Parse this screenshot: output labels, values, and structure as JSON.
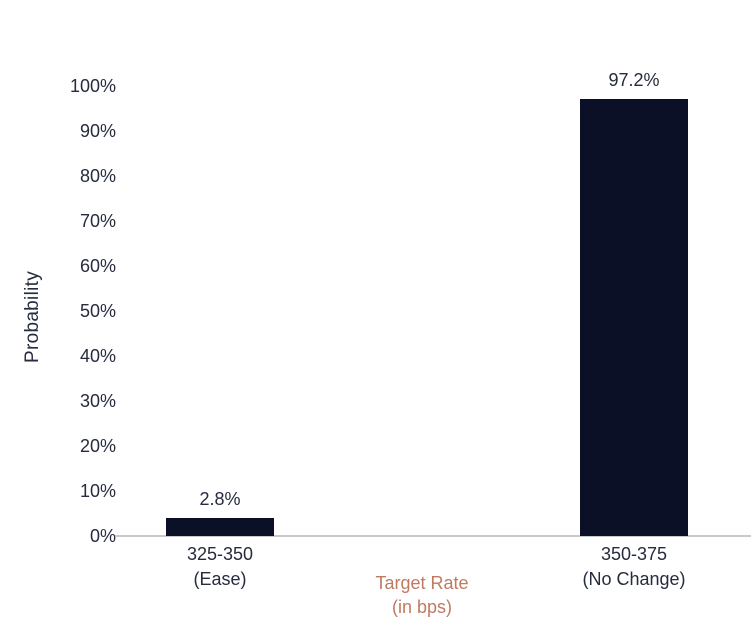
{
  "chart": {
    "y_axis_title": "Probability",
    "x_axis_title_lines": [
      "Target Rate",
      "(in bps)"
    ],
    "colors": {
      "bar": "#0c1027",
      "text": "#262b3d",
      "x_axis_title": "#bf7a62",
      "axis_line": "#c9c9c9",
      "background": "#ffffff"
    }
  },
  "chart_data": {
    "type": "bar",
    "title": "",
    "categories": [
      "325-350 (Ease)",
      "350-375 (No Change)"
    ],
    "category_label_lines": [
      [
        "325-350",
        "(Ease)"
      ],
      [
        "350-375",
        "(No Change)"
      ]
    ],
    "values": [
      2.8,
      97.2
    ],
    "value_labels": [
      "2.8%",
      "97.2%"
    ],
    "xlabel": "Target Rate (in bps)",
    "ylabel": "Probability",
    "ylim": [
      0,
      100
    ],
    "y_tick_step": 10,
    "y_tick_labels": [
      "0%",
      "10%",
      "20%",
      "30%",
      "40%",
      "50%",
      "60%",
      "70%",
      "80%",
      "90%",
      "100%"
    ],
    "grid": false,
    "legend": false
  }
}
